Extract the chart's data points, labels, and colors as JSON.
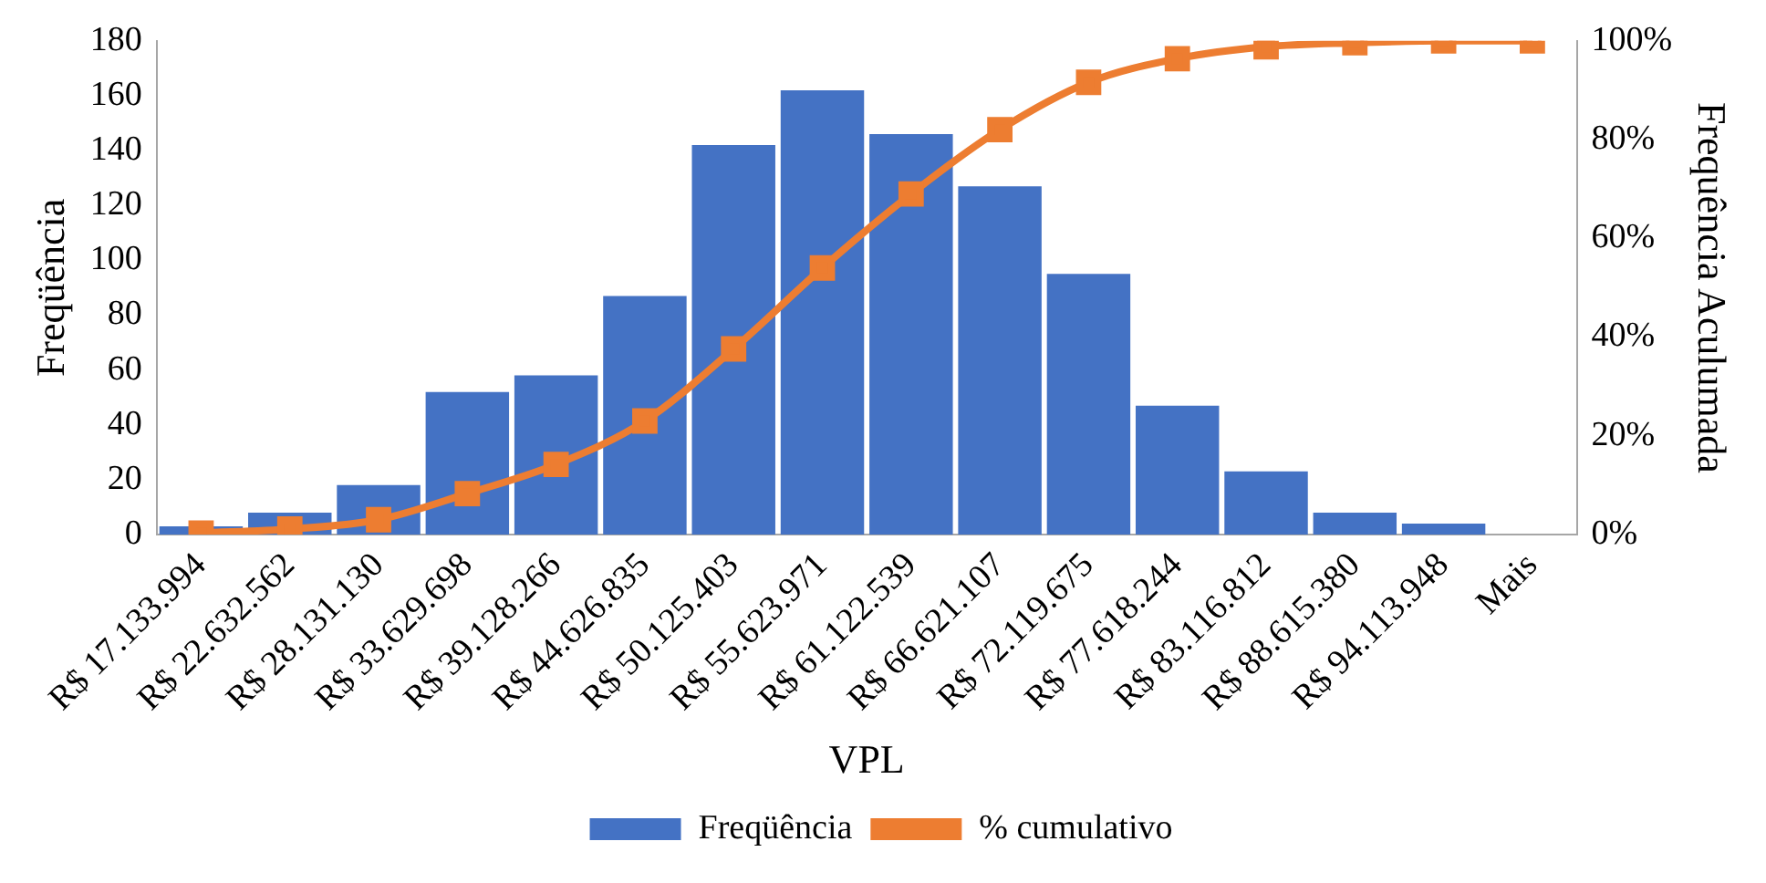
{
  "chart_data": {
    "type": "bar",
    "xlabel": "VPL",
    "ylabel": "Freqüência",
    "y2label": "Frequência Aculumada",
    "categories": [
      "R$ 17.133.994",
      "R$ 22.632.562",
      "R$ 28.131.130",
      "R$ 33.629.698",
      "R$ 39.128.266",
      "R$ 44.626.835",
      "R$ 50.125.403",
      "R$ 55.623.971",
      "R$ 61.122.539",
      "R$ 66.621.107",
      "R$ 72.119.675",
      "R$ 77.618.244",
      "R$ 83.116.812",
      "R$ 88.615.380",
      "R$ 94.113.948",
      "Mais"
    ],
    "series": [
      {
        "name": "Freqüência",
        "color": "#4472c4",
        "values": [
          3,
          8,
          18,
          52,
          58,
          87,
          142,
          162,
          146,
          127,
          95,
          47,
          23,
          8,
          4,
          0
        ]
      },
      {
        "name": "% cumulativo",
        "type": "line",
        "axis": "y2",
        "color": "#ed7d31",
        "marker": "square",
        "values": [
          0.3,
          1.1,
          3,
          8.3,
          14.2,
          23,
          37.6,
          54,
          69,
          82,
          91.6,
          96.4,
          98.8,
          99.6,
          100,
          100
        ]
      }
    ],
    "ylim": [
      0,
      180
    ],
    "yticks": [
      0,
      20,
      40,
      60,
      80,
      100,
      120,
      140,
      160,
      180
    ],
    "y2lim": [
      0,
      100
    ],
    "y2ticks": [
      {
        "value": 0,
        "label": "0%"
      },
      {
        "value": 20,
        "label": "20%"
      },
      {
        "value": 40,
        "label": "40%"
      },
      {
        "value": 60,
        "label": "60%"
      },
      {
        "value": 80,
        "label": "80%"
      },
      {
        "value": 100,
        "label": "100%"
      }
    ],
    "grid": false,
    "legend": "bottom"
  }
}
